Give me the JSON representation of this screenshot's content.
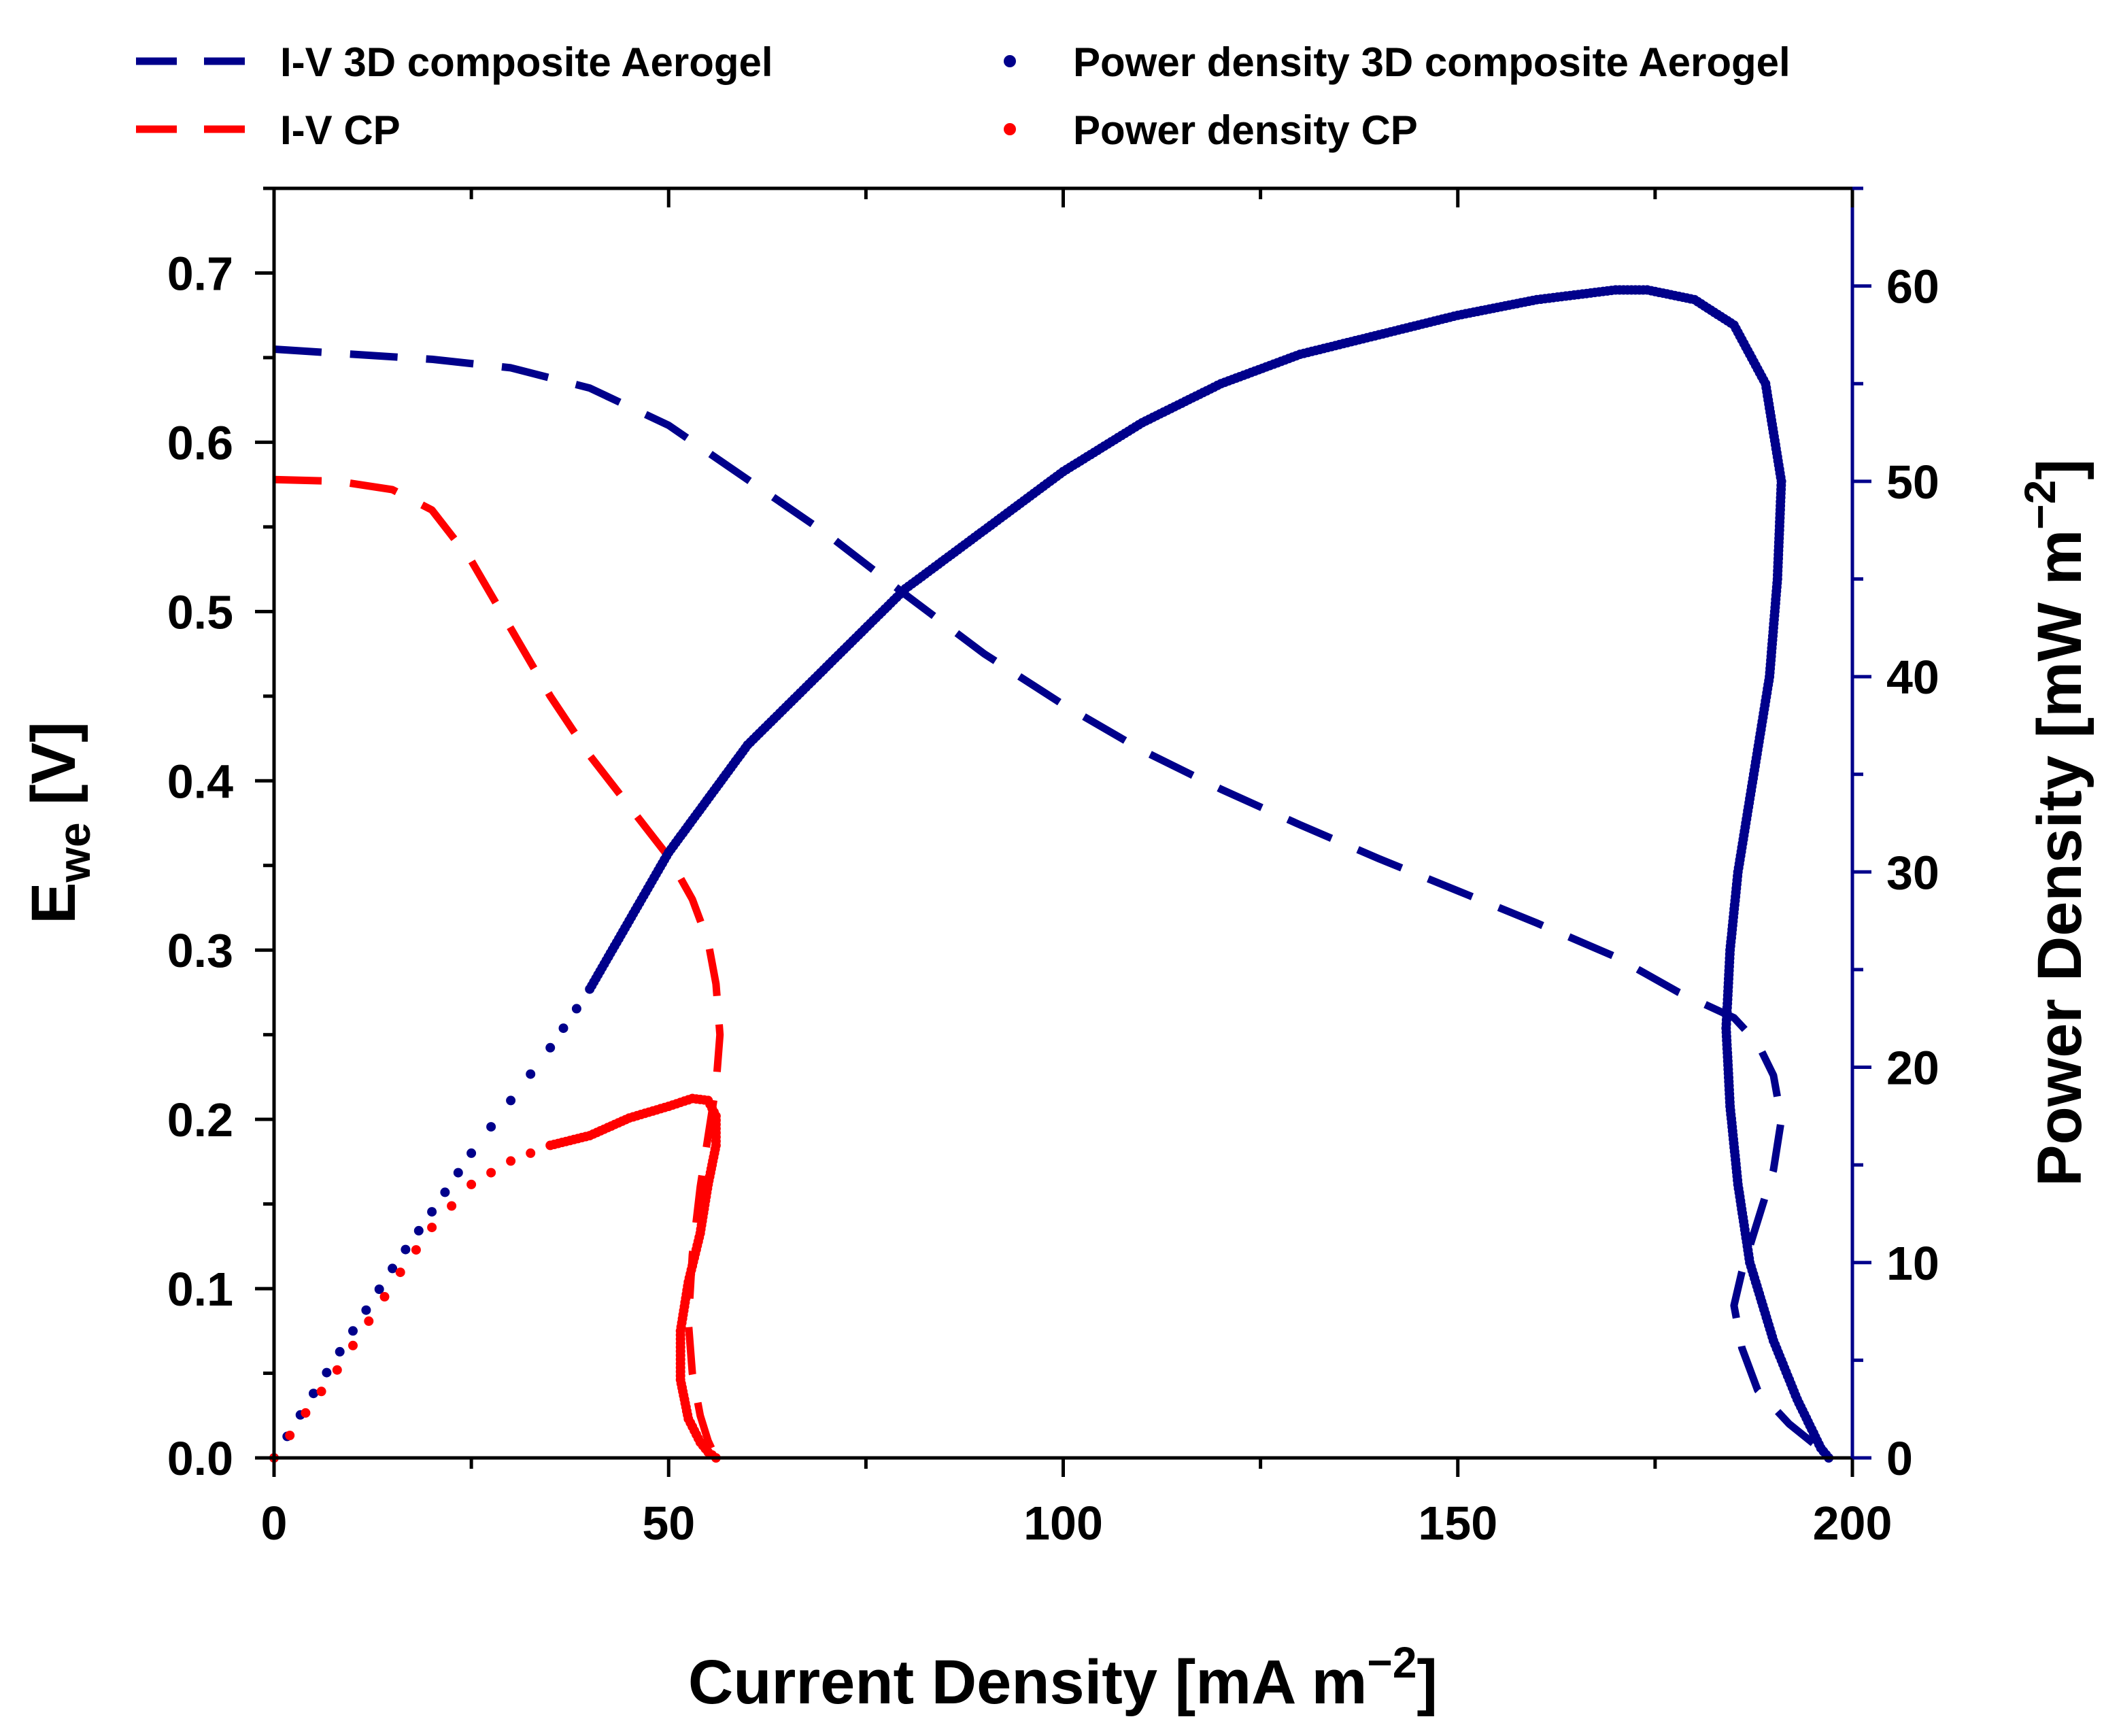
{
  "chart_data": {
    "type": "line",
    "x": {
      "label_main": "Current Density [mA m",
      "label_sup": "−2",
      "label_end": "]",
      "lim": [
        0,
        200
      ],
      "ticks": [
        "0",
        "50",
        "100",
        "150",
        "200"
      ]
    },
    "y_left": {
      "label_main": "E",
      "label_sub": "we",
      "label_end": " [V]",
      "lim": [
        0,
        0.75
      ],
      "ticks": [
        "0.0",
        "0.1",
        "0.2",
        "0.3",
        "0.4",
        "0.5",
        "0.6",
        "0.7"
      ]
    },
    "y_right": {
      "label_main": "Power Density [mW m",
      "label_sup": "−2",
      "label_end": "]",
      "lim": [
        0,
        65
      ],
      "ticks": [
        "0",
        "10",
        "20",
        "30",
        "40",
        "50",
        "60"
      ],
      "color": "#00008B"
    },
    "legend": [
      {
        "label": "I-V 3D composite Aerogel",
        "style": "dash",
        "color": "#00008B"
      },
      {
        "label": "I-V CP",
        "style": "dash",
        "color": "#FF0000"
      },
      {
        "label": "Power density 3D composite Aerogel",
        "style": "dot",
        "color": "#00008B"
      },
      {
        "label": "Power density CP",
        "style": "dot",
        "color": "#FF0000"
      }
    ],
    "series": [
      {
        "name": "I-V 3D composite Aerogel",
        "axis": "left",
        "style": "dash",
        "color": "#00008B",
        "points": [
          [
            0,
            0.655
          ],
          [
            10,
            0.652
          ],
          [
            20,
            0.649
          ],
          [
            30,
            0.644
          ],
          [
            40,
            0.632
          ],
          [
            50,
            0.61
          ],
          [
            60,
            0.578
          ],
          [
            70,
            0.546
          ],
          [
            80,
            0.51
          ],
          [
            90,
            0.475
          ],
          [
            100,
            0.445
          ],
          [
            110,
            0.418
          ],
          [
            120,
            0.395
          ],
          [
            130,
            0.374
          ],
          [
            140,
            0.354
          ],
          [
            150,
            0.335
          ],
          [
            160,
            0.316
          ],
          [
            170,
            0.296
          ],
          [
            178,
            0.275
          ],
          [
            185,
            0.26
          ],
          [
            188,
            0.245
          ],
          [
            190,
            0.226
          ],
          [
            191,
            0.2
          ],
          [
            190,
            0.17
          ],
          [
            188,
            0.14
          ],
          [
            186,
            0.11
          ],
          [
            185,
            0.09
          ],
          [
            186,
            0.065
          ],
          [
            188,
            0.04
          ],
          [
            192,
            0.02
          ],
          [
            196,
            0.005
          ],
          [
            197,
            0.0
          ]
        ]
      },
      {
        "name": "I-V CP",
        "axis": "left",
        "style": "dash",
        "color": "#FF0000",
        "points": [
          [
            0,
            0.578
          ],
          [
            8,
            0.577
          ],
          [
            15,
            0.572
          ],
          [
            20,
            0.56
          ],
          [
            25,
            0.53
          ],
          [
            30,
            0.49
          ],
          [
            35,
            0.45
          ],
          [
            40,
            0.415
          ],
          [
            45,
            0.385
          ],
          [
            50,
            0.355
          ],
          [
            53,
            0.33
          ],
          [
            55,
            0.305
          ],
          [
            56,
            0.28
          ],
          [
            56.5,
            0.25
          ],
          [
            56,
            0.22
          ],
          [
            55,
            0.19
          ],
          [
            54,
            0.16
          ],
          [
            53,
            0.12
          ],
          [
            52.5,
            0.08
          ],
          [
            53,
            0.05
          ],
          [
            54,
            0.025
          ],
          [
            55,
            0.01
          ],
          [
            56,
            0.0
          ]
        ]
      },
      {
        "name": "Power density 3D composite Aerogel",
        "axis": "right",
        "style": "dot",
        "color": "#00008B",
        "points": [
          [
            0,
            0
          ],
          [
            5,
            3.3
          ],
          [
            10,
            6.5
          ],
          [
            15,
            9.7
          ],
          [
            20,
            12.6
          ],
          [
            25,
            15.6
          ],
          [
            30,
            18.3
          ],
          [
            35,
            21.0
          ],
          [
            40,
            24.0
          ],
          [
            45,
            27.5
          ],
          [
            50,
            31.0
          ],
          [
            60,
            36.5
          ],
          [
            70,
            40.5
          ],
          [
            80,
            44.5
          ],
          [
            90,
            47.5
          ],
          [
            100,
            50.5
          ],
          [
            110,
            53.0
          ],
          [
            120,
            55.0
          ],
          [
            130,
            56.5
          ],
          [
            140,
            57.5
          ],
          [
            150,
            58.5
          ],
          [
            160,
            59.3
          ],
          [
            170,
            59.8
          ],
          [
            174,
            59.8
          ],
          [
            180,
            59.3
          ],
          [
            185,
            58.0
          ],
          [
            189,
            55.0
          ],
          [
            191,
            50.0
          ],
          [
            190.5,
            45.0
          ],
          [
            189.5,
            40.0
          ],
          [
            187.5,
            35.0
          ],
          [
            185.5,
            30.0
          ],
          [
            184.5,
            26.0
          ],
          [
            184,
            22.0
          ],
          [
            184.5,
            18.0
          ],
          [
            185.5,
            14.0
          ],
          [
            187,
            10.0
          ],
          [
            190,
            6.0
          ],
          [
            193,
            3.0
          ],
          [
            196,
            0.5
          ],
          [
            197,
            0
          ]
        ]
      },
      {
        "name": "Power density CP",
        "axis": "right",
        "style": "dot",
        "color": "#FF0000",
        "points": [
          [
            0,
            0
          ],
          [
            4,
            2.3
          ],
          [
            8,
            4.5
          ],
          [
            12,
            7.0
          ],
          [
            16,
            9.5
          ],
          [
            20,
            11.8
          ],
          [
            25,
            14.0
          ],
          [
            30,
            15.2
          ],
          [
            35,
            16.0
          ],
          [
            40,
            16.5
          ],
          [
            45,
            17.4
          ],
          [
            50,
            18.0
          ],
          [
            53,
            18.4
          ],
          [
            55,
            18.3
          ],
          [
            56,
            17.5
          ],
          [
            56,
            16.0
          ],
          [
            55,
            14.0
          ],
          [
            54,
            11.5
          ],
          [
            52.5,
            9.0
          ],
          [
            51.5,
            6.5
          ],
          [
            51.5,
            4.0
          ],
          [
            52.5,
            2.0
          ],
          [
            54,
            0.8
          ],
          [
            55,
            0.3
          ],
          [
            56,
            0
          ]
        ]
      }
    ]
  }
}
